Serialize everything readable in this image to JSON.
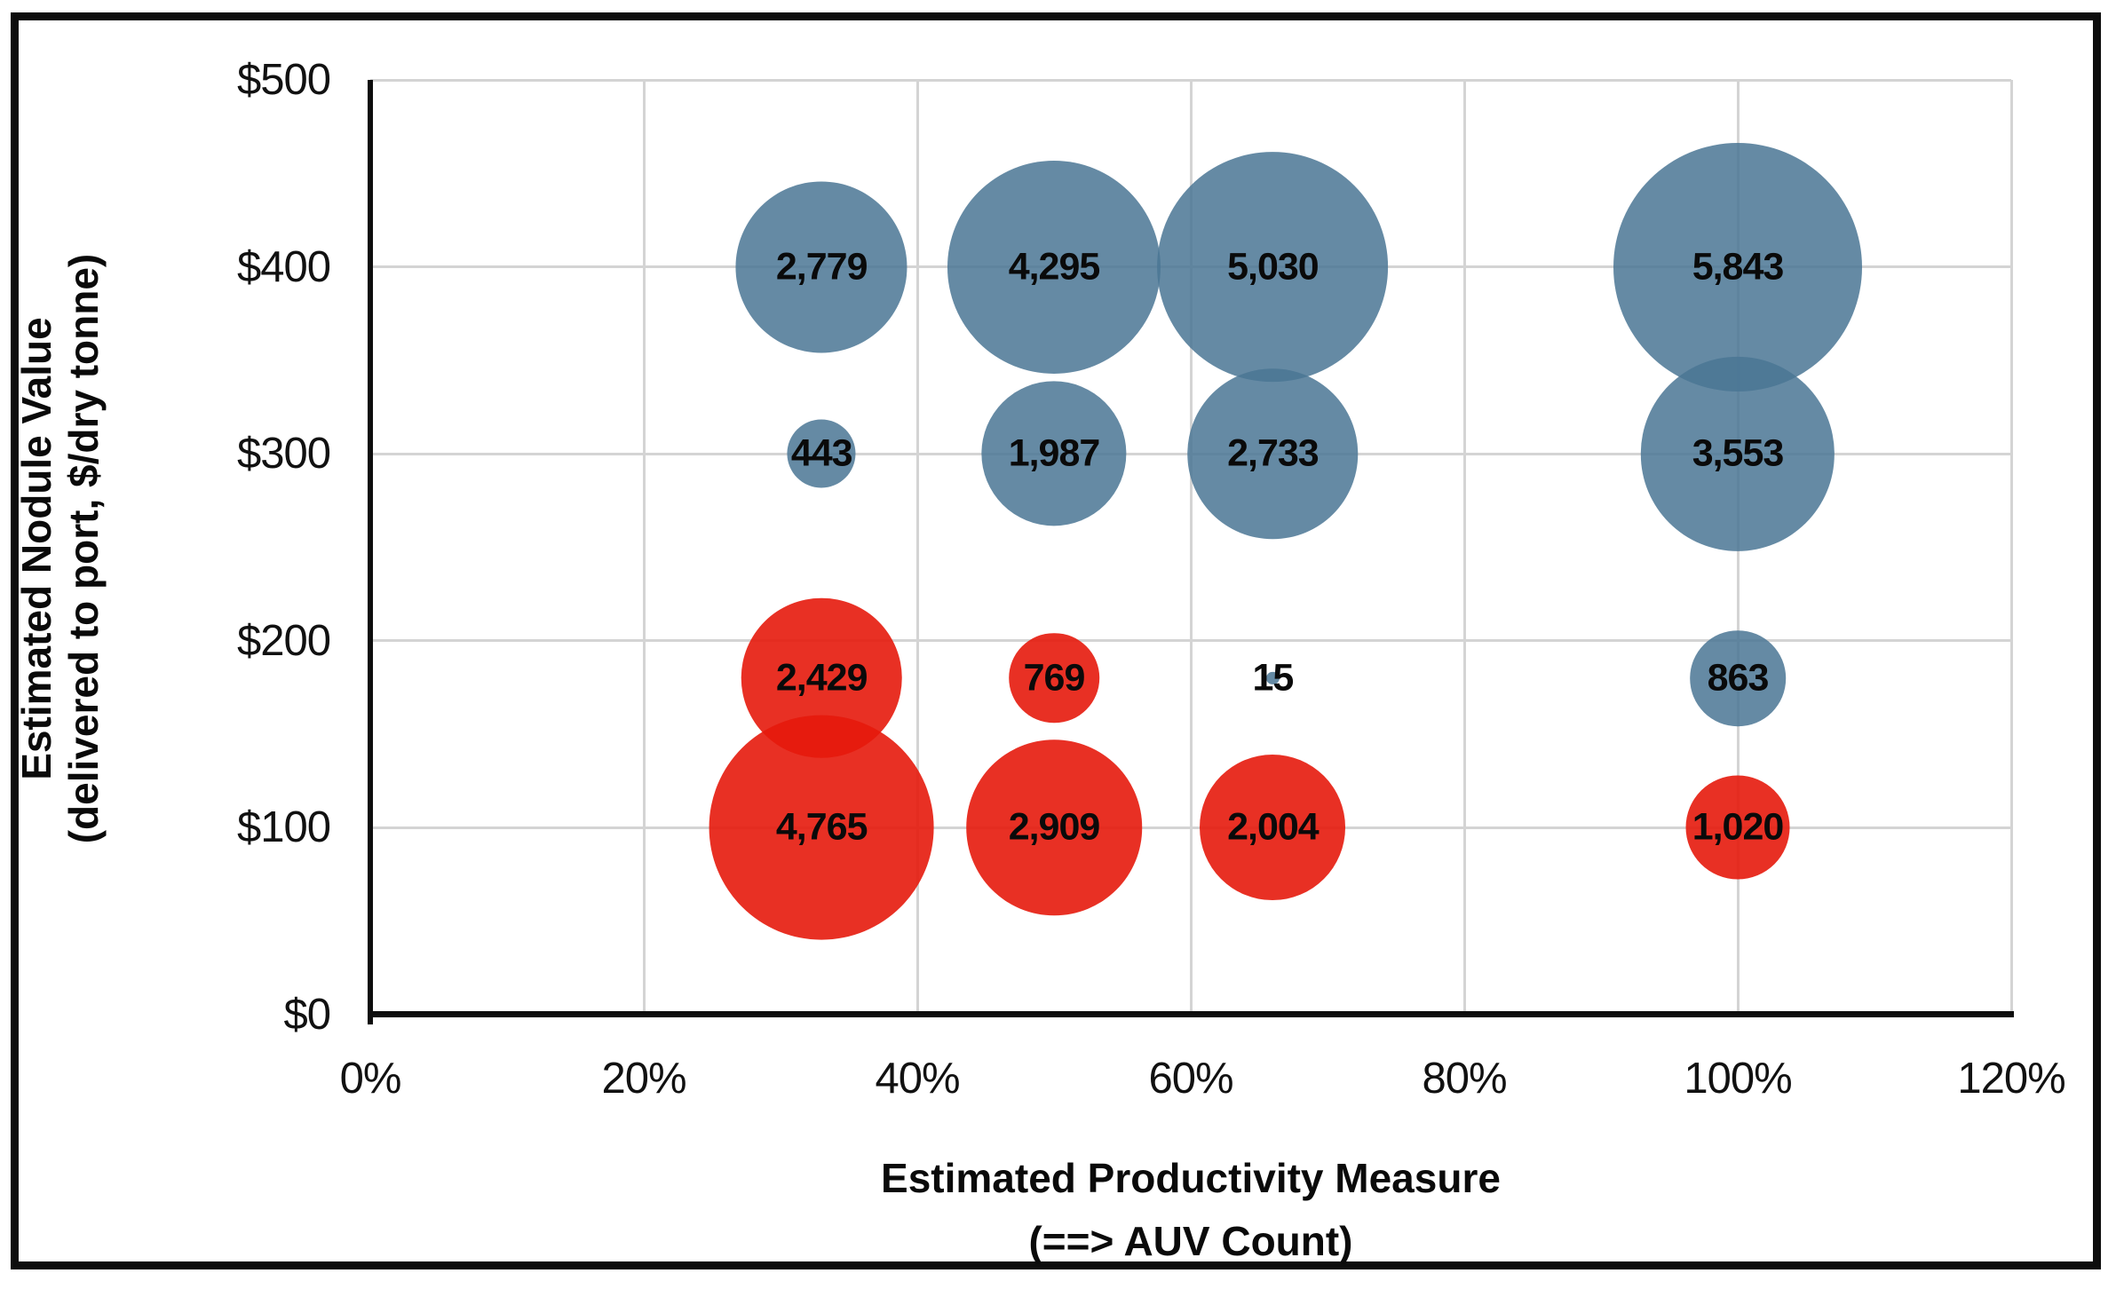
{
  "chart_data": {
    "type": "bubble",
    "title": "",
    "x_axis": {
      "title_line1": "Estimated Productivity Measure",
      "title_line2": "(==> AUV Count)",
      "ticks": [
        "0%",
        "20%",
        "40%",
        "60%",
        "80%",
        "100%",
        "120%"
      ],
      "min": 0,
      "max": 120
    },
    "y_axis": {
      "title_line1": "Estimated Nodule Value",
      "title_line2": "(delivered to port, $/dry tonne)",
      "ticks": [
        "$0",
        "$100",
        "$200",
        "$300",
        "$400",
        "$500"
      ],
      "min": 0,
      "max": 500
    },
    "grid": true,
    "legend": "none",
    "series": [
      {
        "name": "blue",
        "color_hex": "#5B86A3",
        "fill_rgba": "rgba(74,118,148,0.85)",
        "points": [
          {
            "x": 33,
            "y": 400,
            "value": 2779,
            "label": "2,779"
          },
          {
            "x": 50,
            "y": 400,
            "value": 4295,
            "label": "4,295"
          },
          {
            "x": 66,
            "y": 400,
            "value": 5030,
            "label": "5,030"
          },
          {
            "x": 100,
            "y": 400,
            "value": 5843,
            "label": "5,843"
          },
          {
            "x": 33,
            "y": 300,
            "value": 443,
            "label": "443"
          },
          {
            "x": 50,
            "y": 300,
            "value": 1987,
            "label": "1,987"
          },
          {
            "x": 66,
            "y": 300,
            "value": 2733,
            "label": "2,733"
          },
          {
            "x": 100,
            "y": 300,
            "value": 3553,
            "label": "3,553"
          },
          {
            "x": 66,
            "y": 180,
            "value": 15,
            "label": "15"
          },
          {
            "x": 100,
            "y": 180,
            "value": 863,
            "label": "863"
          }
        ]
      },
      {
        "name": "red",
        "color_hex": "#E8291E",
        "fill_rgba": "rgba(230,25,12,0.9)",
        "points": [
          {
            "x": 33,
            "y": 180,
            "value": 2429,
            "label": "2,429"
          },
          {
            "x": 50,
            "y": 180,
            "value": 769,
            "label": "769"
          },
          {
            "x": 33,
            "y": 100,
            "value": 4765,
            "label": "4,765"
          },
          {
            "x": 50,
            "y": 100,
            "value": 2909,
            "label": "2,909"
          },
          {
            "x": 66,
            "y": 100,
            "value": 2004,
            "label": "2,004"
          },
          {
            "x": 100,
            "y": 100,
            "value": 1020,
            "label": "1,020"
          }
        ]
      }
    ]
  }
}
